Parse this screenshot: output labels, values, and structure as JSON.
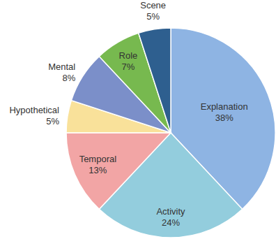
{
  "chart_data": {
    "type": "pie",
    "categories": [
      "Explanation",
      "Activity",
      "Temporal",
      "Hypothetical",
      "Mental",
      "Role",
      "Scene"
    ],
    "values": [
      38,
      24,
      13,
      5,
      8,
      7,
      5
    ],
    "value_labels": [
      "38%",
      "24%",
      "13%",
      "5%",
      "8%",
      "7%",
      "5%"
    ],
    "colors": [
      "#8eb4e3",
      "#93cddd",
      "#f2a5a5",
      "#f9e19a",
      "#7b8fc9",
      "#77b94f",
      "#2e5f8f"
    ],
    "data_labels": true
  }
}
